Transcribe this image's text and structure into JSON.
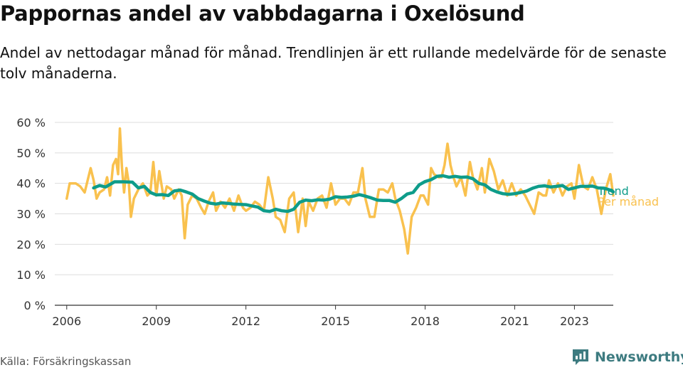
{
  "header": {
    "title": "Pappornas andel av vabbdagarna i Oxelösund",
    "subtitle": "Andel av nettodagar månad för månad. Trendlinjen är ett rullande medelvärde för de senaste tolv månaderna."
  },
  "footer": {
    "source": "Källa: Försäkringskassan",
    "brand": "Newsworthy"
  },
  "colors": {
    "monthly": "#f9c14e",
    "trend": "#0e9c8a",
    "axis": "#333333",
    "grid": "#dddddd",
    "brand": "#3d7b80"
  },
  "icons": {
    "brand": "newsworthy-logo-icon"
  },
  "chart_data": {
    "type": "line",
    "x_unit": "year",
    "ylim": [
      0,
      60
    ],
    "xlim": [
      2005.6,
      2024.3
    ],
    "y_ticks": [
      0,
      10,
      20,
      30,
      40,
      50,
      60
    ],
    "y_tick_labels": [
      "0 %",
      "10 %",
      "20 %",
      "30 %",
      "40 %",
      "50 %",
      "60 %"
    ],
    "x_ticks": [
      2006,
      2009,
      2012,
      2015,
      2018,
      2021,
      2023
    ],
    "x_tick_labels": [
      "2006",
      "2009",
      "2012",
      "2015",
      "2018",
      "2021",
      "2023"
    ],
    "grid": "horizontal",
    "legend": "right, at end of lines",
    "series": [
      {
        "name": "Per månad",
        "color": "#f9c14e",
        "points": [
          [
            2006.0,
            35
          ],
          [
            2006.1,
            40
          ],
          [
            2006.3,
            40
          ],
          [
            2006.45,
            39
          ],
          [
            2006.6,
            37
          ],
          [
            2006.8,
            45
          ],
          [
            2006.9,
            41
          ],
          [
            2007.0,
            35
          ],
          [
            2007.1,
            37
          ],
          [
            2007.25,
            38
          ],
          [
            2007.35,
            42
          ],
          [
            2007.45,
            36
          ],
          [
            2007.55,
            46
          ],
          [
            2007.65,
            48
          ],
          [
            2007.72,
            43
          ],
          [
            2007.78,
            58
          ],
          [
            2007.85,
            45
          ],
          [
            2007.92,
            37
          ],
          [
            2008.0,
            45
          ],
          [
            2008.08,
            40
          ],
          [
            2008.15,
            29
          ],
          [
            2008.25,
            35
          ],
          [
            2008.4,
            38
          ],
          [
            2008.55,
            40
          ],
          [
            2008.7,
            36
          ],
          [
            2008.8,
            37
          ],
          [
            2008.9,
            47
          ],
          [
            2009.0,
            36
          ],
          [
            2009.1,
            44
          ],
          [
            2009.25,
            35
          ],
          [
            2009.35,
            39
          ],
          [
            2009.5,
            38
          ],
          [
            2009.6,
            35
          ],
          [
            2009.75,
            38
          ],
          [
            2009.85,
            36
          ],
          [
            2009.95,
            22
          ],
          [
            2010.05,
            33
          ],
          [
            2010.2,
            36
          ],
          [
            2010.35,
            35
          ],
          [
            2010.5,
            32
          ],
          [
            2010.62,
            30
          ],
          [
            2010.75,
            34
          ],
          [
            2010.9,
            37
          ],
          [
            2011.0,
            31
          ],
          [
            2011.15,
            34
          ],
          [
            2011.3,
            32
          ],
          [
            2011.45,
            35
          ],
          [
            2011.6,
            31
          ],
          [
            2011.75,
            36
          ],
          [
            2011.9,
            32
          ],
          [
            2012.0,
            31
          ],
          [
            2012.15,
            32
          ],
          [
            2012.3,
            34
          ],
          [
            2012.45,
            33
          ],
          [
            2012.6,
            31
          ],
          [
            2012.75,
            42
          ],
          [
            2012.9,
            35
          ],
          [
            2013.0,
            29
          ],
          [
            2013.15,
            28
          ],
          [
            2013.3,
            24
          ],
          [
            2013.45,
            35
          ],
          [
            2013.6,
            37
          ],
          [
            2013.75,
            24
          ],
          [
            2013.9,
            35
          ],
          [
            2014.0,
            26
          ],
          [
            2014.1,
            34
          ],
          [
            2014.25,
            31
          ],
          [
            2014.4,
            35
          ],
          [
            2014.55,
            36
          ],
          [
            2014.7,
            32
          ],
          [
            2014.85,
            40
          ],
          [
            2015.0,
            33
          ],
          [
            2015.15,
            35
          ],
          [
            2015.3,
            35
          ],
          [
            2015.45,
            33
          ],
          [
            2015.6,
            37
          ],
          [
            2015.75,
            37
          ],
          [
            2015.9,
            45
          ],
          [
            2016.0,
            35
          ],
          [
            2016.15,
            29
          ],
          [
            2016.3,
            29
          ],
          [
            2016.45,
            38
          ],
          [
            2016.6,
            38
          ],
          [
            2016.75,
            37
          ],
          [
            2016.9,
            40
          ],
          [
            2017.0,
            35
          ],
          [
            2017.15,
            31
          ],
          [
            2017.3,
            25
          ],
          [
            2017.42,
            17
          ],
          [
            2017.55,
            29
          ],
          [
            2017.7,
            32
          ],
          [
            2017.85,
            36
          ],
          [
            2017.95,
            36
          ],
          [
            2018.1,
            33
          ],
          [
            2018.2,
            45
          ],
          [
            2018.3,
            43
          ],
          [
            2018.45,
            42
          ],
          [
            2018.55,
            42
          ],
          [
            2018.65,
            46
          ],
          [
            2018.75,
            53
          ],
          [
            2018.85,
            46
          ],
          [
            2018.95,
            42
          ],
          [
            2019.05,
            39
          ],
          [
            2019.2,
            42
          ],
          [
            2019.35,
            36
          ],
          [
            2019.5,
            47
          ],
          [
            2019.6,
            42
          ],
          [
            2019.75,
            38
          ],
          [
            2019.9,
            45
          ],
          [
            2020.0,
            37
          ],
          [
            2020.15,
            48
          ],
          [
            2020.3,
            44
          ],
          [
            2020.45,
            38
          ],
          [
            2020.6,
            41
          ],
          [
            2020.75,
            36
          ],
          [
            2020.9,
            40
          ],
          [
            2021.05,
            36
          ],
          [
            2021.2,
            38
          ],
          [
            2021.35,
            36
          ],
          [
            2021.5,
            33
          ],
          [
            2021.65,
            30
          ],
          [
            2021.8,
            37
          ],
          [
            2021.95,
            36
          ],
          [
            2022.05,
            36
          ],
          [
            2022.15,
            41
          ],
          [
            2022.3,
            37
          ],
          [
            2022.45,
            40
          ],
          [
            2022.6,
            36
          ],
          [
            2022.75,
            39
          ],
          [
            2022.9,
            40
          ],
          [
            2023.0,
            35
          ],
          [
            2023.15,
            46
          ],
          [
            2023.3,
            39
          ],
          [
            2023.45,
            38
          ],
          [
            2023.6,
            42
          ],
          [
            2023.75,
            38
          ],
          [
            2023.9,
            30
          ],
          [
            2024.05,
            38
          ],
          [
            2024.2,
            43
          ],
          [
            2024.3,
            36
          ]
        ]
      },
      {
        "name": "Trend",
        "color": "#0e9c8a",
        "points": [
          [
            2006.9,
            38.5
          ],
          [
            2007.1,
            39.3
          ],
          [
            2007.3,
            38.8
          ],
          [
            2007.6,
            40.5
          ],
          [
            2007.9,
            40.5
          ],
          [
            2008.2,
            40.4
          ],
          [
            2008.4,
            38.5
          ],
          [
            2008.6,
            39.0
          ],
          [
            2008.8,
            37.0
          ],
          [
            2009.0,
            36.2
          ],
          [
            2009.2,
            36.3
          ],
          [
            2009.4,
            36.0
          ],
          [
            2009.6,
            37.5
          ],
          [
            2009.8,
            37.8
          ],
          [
            2010.0,
            37.2
          ],
          [
            2010.2,
            36.5
          ],
          [
            2010.4,
            35.0
          ],
          [
            2010.6,
            34.2
          ],
          [
            2010.8,
            33.5
          ],
          [
            2011.0,
            33.2
          ],
          [
            2011.2,
            33.6
          ],
          [
            2011.4,
            33.4
          ],
          [
            2011.6,
            33.2
          ],
          [
            2011.8,
            33.1
          ],
          [
            2012.0,
            33.0
          ],
          [
            2012.2,
            32.6
          ],
          [
            2012.4,
            32.2
          ],
          [
            2012.6,
            31.0
          ],
          [
            2012.8,
            30.8
          ],
          [
            2013.0,
            31.5
          ],
          [
            2013.2,
            31.0
          ],
          [
            2013.4,
            30.8
          ],
          [
            2013.6,
            31.5
          ],
          [
            2013.8,
            33.8
          ],
          [
            2014.0,
            34.5
          ],
          [
            2014.2,
            34.3
          ],
          [
            2014.4,
            34.6
          ],
          [
            2014.6,
            34.5
          ],
          [
            2014.8,
            34.8
          ],
          [
            2015.0,
            35.6
          ],
          [
            2015.2,
            35.4
          ],
          [
            2015.4,
            35.5
          ],
          [
            2015.6,
            35.8
          ],
          [
            2015.8,
            36.3
          ],
          [
            2016.0,
            35.8
          ],
          [
            2016.2,
            35.2
          ],
          [
            2016.4,
            34.5
          ],
          [
            2016.6,
            34.4
          ],
          [
            2016.8,
            34.4
          ],
          [
            2017.0,
            33.8
          ],
          [
            2017.2,
            35.0
          ],
          [
            2017.4,
            36.5
          ],
          [
            2017.6,
            37.0
          ],
          [
            2017.8,
            39.5
          ],
          [
            2018.0,
            40.6
          ],
          [
            2018.2,
            41.2
          ],
          [
            2018.4,
            42.3
          ],
          [
            2018.6,
            42.5
          ],
          [
            2018.8,
            42.0
          ],
          [
            2019.0,
            42.3
          ],
          [
            2019.2,
            42.0
          ],
          [
            2019.4,
            42.1
          ],
          [
            2019.6,
            41.5
          ],
          [
            2019.8,
            40.0
          ],
          [
            2020.0,
            39.5
          ],
          [
            2020.2,
            38.0
          ],
          [
            2020.4,
            37.2
          ],
          [
            2020.6,
            36.6
          ],
          [
            2020.8,
            36.4
          ],
          [
            2021.0,
            36.6
          ],
          [
            2021.2,
            37.0
          ],
          [
            2021.4,
            37.5
          ],
          [
            2021.6,
            38.4
          ],
          [
            2021.8,
            39.0
          ],
          [
            2022.0,
            39.2
          ],
          [
            2022.2,
            38.8
          ],
          [
            2022.4,
            39.0
          ],
          [
            2022.6,
            39.3
          ],
          [
            2022.8,
            38.0
          ],
          [
            2023.0,
            38.5
          ],
          [
            2023.2,
            39.0
          ],
          [
            2023.4,
            39.0
          ],
          [
            2023.6,
            39.1
          ],
          [
            2023.8,
            38.5
          ],
          [
            2024.0,
            38.4
          ],
          [
            2024.2,
            37.8
          ],
          [
            2024.3,
            37.2
          ]
        ]
      }
    ]
  }
}
